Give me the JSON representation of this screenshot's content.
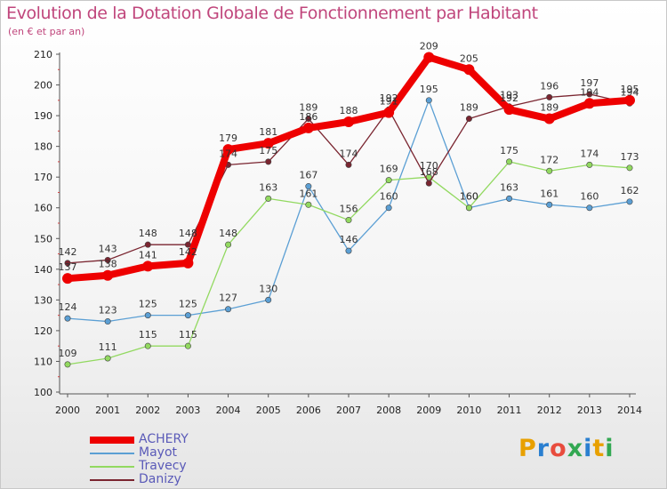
{
  "colors": {
    "achery": "#ee0000",
    "mayot": "#5b9fd4",
    "travecy": "#92d960",
    "danizy": "#7a2530",
    "axis_text": "#222222",
    "title": "#c0467c"
  },
  "chart_data": {
    "type": "line",
    "title": "Evolution de la Dotation Globale de Fonctionnement par Habitant",
    "subtitle": "(en € et par an)",
    "xlabel": "",
    "ylabel": "",
    "x": [
      2000,
      2001,
      2002,
      2003,
      2004,
      2005,
      2006,
      2007,
      2008,
      2009,
      2010,
      2011,
      2012,
      2013,
      2014
    ],
    "ylim": [
      100,
      210
    ],
    "yticks": [
      100,
      110,
      120,
      130,
      140,
      150,
      160,
      170,
      180,
      190,
      200,
      210
    ],
    "grid": false,
    "legend_position": "bottom-left",
    "series": [
      {
        "name": "ACHERY",
        "color_key": "achery",
        "values": [
          137,
          138,
          141,
          142,
          179,
          181,
          186,
          188,
          191,
          209,
          205,
          192,
          189,
          194,
          195
        ]
      },
      {
        "name": "Mayot",
        "color_key": "mayot",
        "values": [
          124,
          123,
          125,
          125,
          127,
          130,
          167,
          146,
          160,
          195,
          160,
          163,
          161,
          160,
          162
        ]
      },
      {
        "name": "Travecy",
        "color_key": "travecy",
        "values": [
          109,
          111,
          115,
          115,
          148,
          163,
          161,
          156,
          169,
          170,
          160,
          175,
          172,
          174,
          173
        ]
      },
      {
        "name": "Danizy",
        "color_key": "danizy",
        "values": [
          142,
          143,
          148,
          148,
          174,
          175,
          189,
          174,
          192,
          168,
          189,
          193,
          196,
          197,
          194
        ]
      }
    ]
  },
  "logo": {
    "text": "Proxiti",
    "letter_colors": [
      "#e8a000",
      "#2a7fd0",
      "#e84c3d",
      "#32a852",
      "#2a7fd0",
      "#e8a000",
      "#32a852"
    ]
  }
}
